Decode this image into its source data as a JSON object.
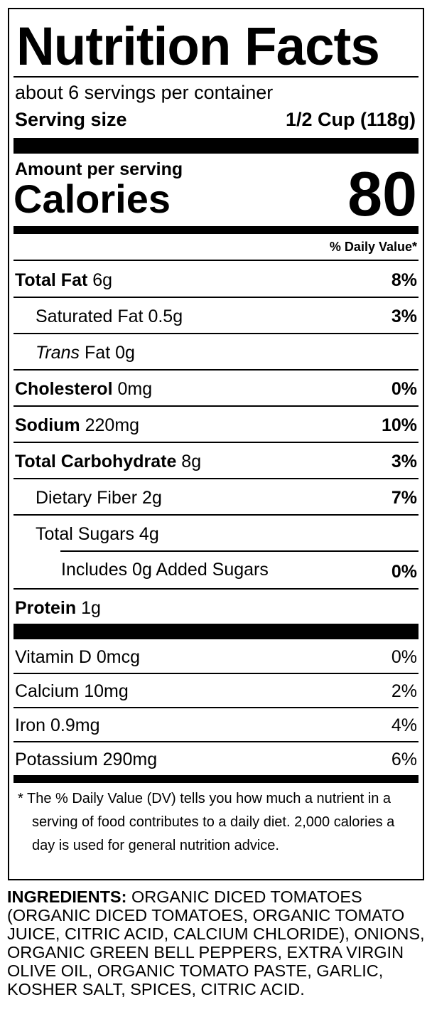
{
  "title": "Nutrition Facts",
  "servings_per_container": "about 6 servings per container",
  "serving_size_label": "Serving size",
  "serving_size_value": "1/2 Cup (118g)",
  "amount_per_serving": "Amount per serving",
  "calories_label": "Calories",
  "calories_value": "80",
  "daily_value_header": "% Daily Value*",
  "nutrients": [
    {
      "name": "Total Fat",
      "amount": "6g",
      "dv": "8%"
    },
    {
      "name": "Saturated Fat",
      "amount": "0.5g",
      "dv": "3%"
    },
    {
      "name_italic": "Trans",
      "name": "Fat",
      "amount": "0g",
      "dv": ""
    },
    {
      "name": "Cholesterol",
      "amount": "0mg",
      "dv": "0%"
    },
    {
      "name": "Sodium",
      "amount": "220mg",
      "dv": "10%"
    },
    {
      "name": "Total Carbohydrate",
      "amount": "8g",
      "dv": "3%"
    },
    {
      "name": "Dietary Fiber",
      "amount": "2g",
      "dv": "7%"
    },
    {
      "name": "Total Sugars",
      "amount": "4g",
      "dv": ""
    },
    {
      "name": "Includes 0g Added Sugars",
      "amount": "",
      "dv": "0%"
    },
    {
      "name": "Protein",
      "amount": "1g",
      "dv": ""
    }
  ],
  "vitamins": [
    {
      "name": "Vitamin D 0mcg",
      "dv": "0%"
    },
    {
      "name": "Calcium 10mg",
      "dv": "2%"
    },
    {
      "name": "Iron 0.9mg",
      "dv": "4%"
    },
    {
      "name": "Potassium 290mg",
      "dv": "6%"
    }
  ],
  "footnote": "* The % Daily Value (DV) tells you how much a nutrient in a serving of food contributes to a daily diet. 2,000 calories a day is used for general nutrition advice.",
  "ingredients_label": "INGREDIENTS:",
  "ingredients_text": "ORGANIC DICED TOMATOES (ORGANIC DICED TOMATOES, ORGANIC TOMATO JUICE, CITRIC ACID, CALCIUM CHLORIDE), ONIONS, ORGANIC GREEN BELL PEPPERS, EXTRA VIRGIN OLIVE OIL, ORGANIC TOMATO PASTE, GARLIC, KOSHER SALT, SPICES, CITRIC ACID."
}
